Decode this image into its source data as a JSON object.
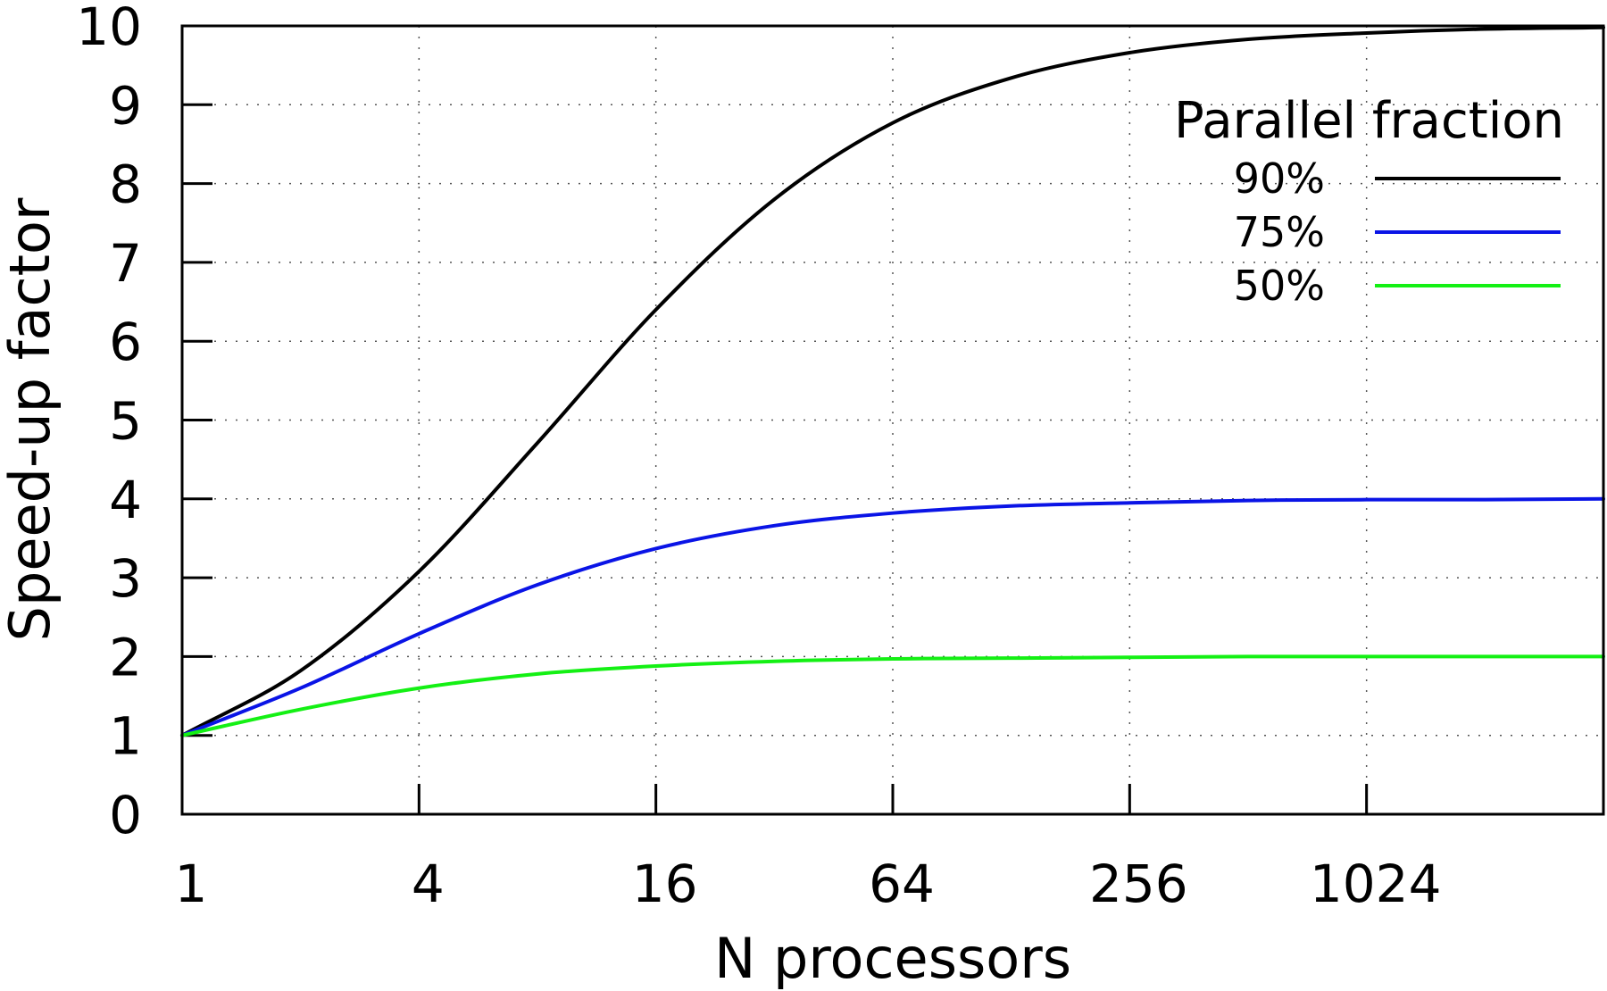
{
  "chart_data": {
    "type": "line",
    "xlabel": "N processors",
    "ylabel": "Speed-up factor",
    "x_scale": "log2",
    "xlim": [
      1,
      4096
    ],
    "ylim": [
      0,
      10
    ],
    "x_ticks": [
      1,
      4,
      16,
      64,
      256,
      1024
    ],
    "x_tick_labels": [
      "1",
      "4",
      "16",
      "64",
      "256",
      "1024"
    ],
    "y_ticks": [
      0,
      1,
      2,
      3,
      4,
      5,
      6,
      7,
      8,
      9,
      10
    ],
    "y_tick_labels": [
      "0",
      "1",
      "2",
      "3",
      "4",
      "5",
      "6",
      "7",
      "8",
      "9",
      "10"
    ],
    "grid": true,
    "legend": {
      "title": "Parallel fraction",
      "placement": "top-right"
    },
    "x": [
      1,
      2,
      4,
      8,
      16,
      32,
      64,
      128,
      256,
      512,
      1024,
      2048,
      4096
    ],
    "series": [
      {
        "name": "90%",
        "color": "#000000",
        "values": [
          1.0,
          1.82,
          3.08,
          4.71,
          6.4,
          7.8,
          8.77,
          9.34,
          9.66,
          9.83,
          9.91,
          9.96,
          9.98
        ]
      },
      {
        "name": "75%",
        "color": "#0a14e6",
        "values": [
          1.0,
          1.6,
          2.29,
          2.91,
          3.37,
          3.66,
          3.82,
          3.91,
          3.95,
          3.98,
          3.99,
          3.99,
          4.0
        ]
      },
      {
        "name": "50%",
        "color": "#14f014",
        "values": [
          1.0,
          1.33,
          1.6,
          1.78,
          1.88,
          1.94,
          1.97,
          1.98,
          1.99,
          2.0,
          2.0,
          2.0,
          2.0
        ]
      }
    ]
  }
}
